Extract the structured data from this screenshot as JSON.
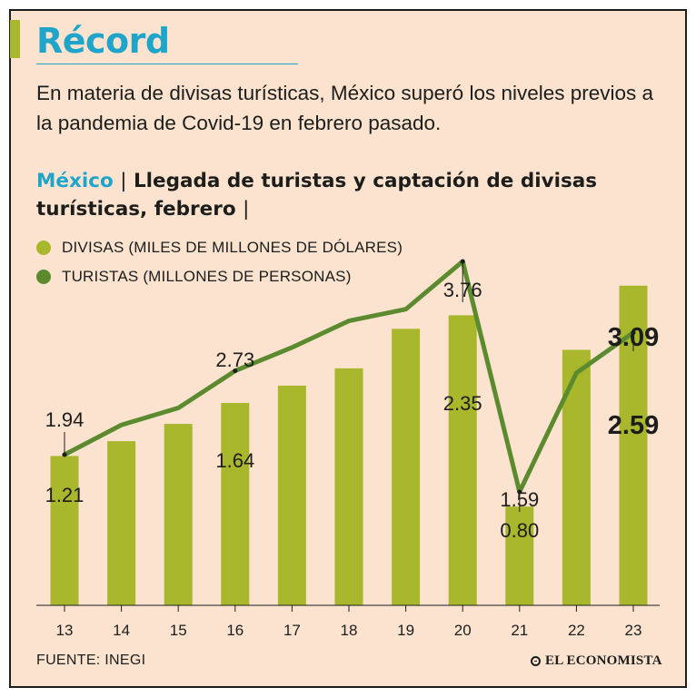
{
  "header": {
    "title": "Récord",
    "intro": "En materia de divisas turísticas, México superó los niveles previos a la pandemia de Covid-19 en febrero pasado."
  },
  "chart_header": {
    "country": "México",
    "separator": "|",
    "title": "Llegada de turistas y captación de divisas turísticas, febrero",
    "trailing_separator": "|"
  },
  "legend": {
    "items": [
      {
        "label": "DIVISAS (MILES DE MILLONES DE DÓLARES)",
        "color": "#a8b72b"
      },
      {
        "label": "TURISTAS (MILLONES DE PERSONAS)",
        "color": "#5c8a2e"
      }
    ]
  },
  "chart_data": {
    "type": "bar",
    "categories": [
      "13",
      "14",
      "15",
      "16",
      "17",
      "18",
      "19",
      "20",
      "21",
      "22",
      "23"
    ],
    "series": [
      {
        "name": "DIVISAS (MILES DE MILLONES DE DÓLARES)",
        "type": "bar",
        "color": "#a8b72b",
        "values": [
          1.21,
          1.33,
          1.47,
          1.64,
          1.78,
          1.92,
          2.24,
          2.35,
          0.8,
          2.07,
          2.59
        ],
        "labeled": [
          {
            "index": 0,
            "label": "1.21"
          },
          {
            "index": 3,
            "label": "1.64"
          },
          {
            "index": 7,
            "label": "2.35"
          },
          {
            "index": 8,
            "label": "0.80"
          },
          {
            "index": 10,
            "label": "2.59",
            "emphasis": true
          }
        ]
      },
      {
        "name": "TURISTAS (MILLONES DE PERSONAS)",
        "type": "line",
        "color": "#5c8a2e",
        "values": [
          1.94,
          2.22,
          2.38,
          2.73,
          2.95,
          3.2,
          3.31,
          3.76,
          1.59,
          2.71,
          3.09
        ],
        "labeled": [
          {
            "index": 0,
            "label": "1.94"
          },
          {
            "index": 3,
            "label": "2.73"
          },
          {
            "index": 7,
            "label": "3.76"
          },
          {
            "index": 8,
            "label": "1.59"
          },
          {
            "index": 10,
            "label": "3.09",
            "emphasis": true
          }
        ]
      }
    ],
    "title": "Llegada de turistas y captación de divisas turísticas, febrero",
    "xlabel": "",
    "ylabel": "",
    "ylim": [
      0,
      4
    ],
    "grid": false
  },
  "footer": {
    "source": "FUENTE: INEGI",
    "brand": "EL ECONOMISTA"
  }
}
